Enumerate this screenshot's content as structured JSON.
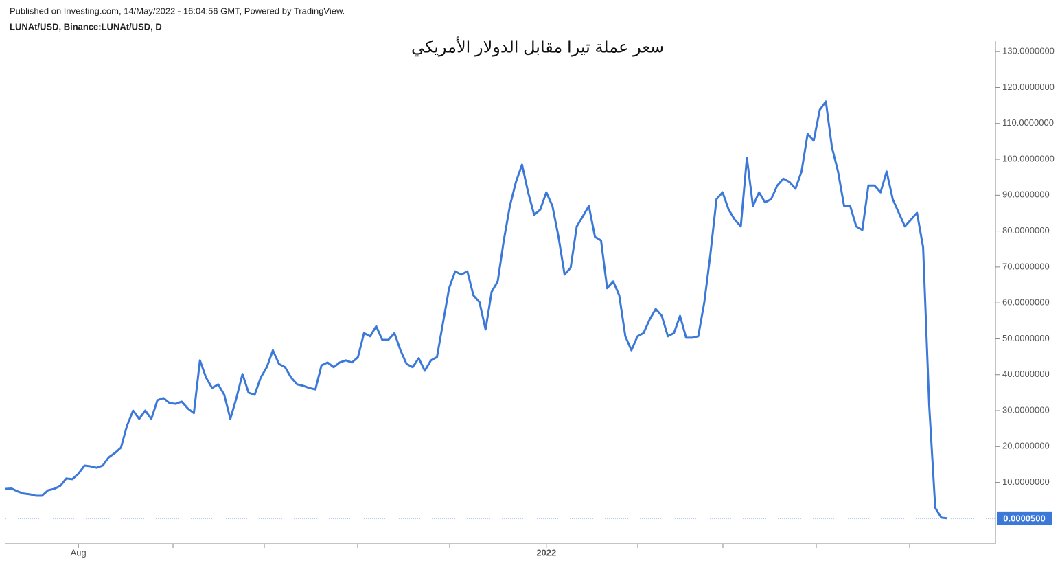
{
  "header": {
    "published": "Published on Investing.com, 14/May/2022 - 16:04:56 GMT, Powered by TradingView.",
    "symbol": "LUNAt/USD, Binance:LUNAt/USD, D"
  },
  "chart_data": {
    "type": "line",
    "title": "سعر عملة تيرا مقابل الدولار الأمريكي",
    "color": "#3b78d8",
    "categories": [
      null,
      null,
      null,
      null,
      null,
      null,
      null,
      null,
      null,
      null,
      null,
      null,
      "Aug",
      null,
      null,
      null,
      null,
      null,
      null,
      null,
      null,
      null,
      null,
      null,
      null,
      null,
      null,
      null,
      null,
      null,
      null,
      null,
      null,
      null,
      null,
      null,
      null,
      null,
      null,
      null,
      null,
      null,
      null,
      null,
      null,
      null,
      null,
      null,
      null,
      null,
      null,
      null,
      null,
      null,
      null,
      null,
      null,
      null,
      null,
      null,
      null,
      null,
      null,
      null,
      null,
      null,
      null,
      null,
      null,
      null,
      null,
      null,
      null,
      null,
      null,
      null,
      null,
      null,
      null,
      null,
      null,
      null,
      null,
      null,
      null,
      null,
      null,
      null,
      null,
      "2022",
      null,
      null,
      null,
      null,
      null,
      null,
      null,
      null,
      null,
      null,
      null,
      null,
      null,
      null,
      null,
      null,
      null,
      null,
      null,
      null,
      null,
      null,
      null,
      null,
      null,
      null,
      null,
      null,
      null,
      null,
      null,
      null,
      null,
      null,
      null,
      null,
      null,
      null,
      null,
      null,
      null,
      null,
      null,
      null,
      null,
      null,
      null,
      null,
      null,
      null,
      null,
      null,
      null,
      null,
      null,
      null,
      null,
      null,
      null,
      null,
      null,
      null,
      null,
      null,
      null,
      null
    ],
    "values": [
      8.2,
      8.3,
      7.5,
      6.9,
      6.7,
      6.3,
      6.3,
      7.8,
      8.2,
      9.0,
      11.1,
      10.9,
      12.4,
      14.7,
      14.5,
      14.1,
      14.7,
      17.0,
      18.2,
      19.7,
      25.8,
      30.0,
      27.7,
      30.0,
      27.7,
      32.9,
      33.5,
      32.1,
      31.9,
      32.5,
      30.6,
      29.3,
      44.0,
      39.2,
      36.3,
      37.3,
      34.4,
      27.7,
      33.5,
      40.2,
      35.0,
      34.4,
      39.2,
      42.1,
      46.8,
      43.0,
      42.1,
      39.2,
      37.3,
      36.9,
      36.3,
      35.9,
      42.6,
      43.4,
      42.1,
      43.4,
      44.0,
      43.4,
      44.9,
      51.6,
      50.7,
      53.5,
      49.7,
      49.7,
      51.6,
      46.8,
      43.0,
      42.1,
      44.6,
      41.1,
      44.0,
      44.9,
      54.5,
      64.1,
      68.8,
      67.9,
      68.8,
      62.1,
      60.2,
      52.6,
      63.1,
      66.0,
      77.4,
      87.0,
      93.7,
      98.5,
      90.8,
      84.5,
      86.0,
      90.8,
      87.0,
      78.4,
      67.9,
      69.8,
      81.3,
      84.1,
      87.0,
      78.4,
      77.4,
      64.1,
      66.0,
      62.1,
      50.7,
      46.8,
      50.7,
      51.6,
      55.4,
      58.3,
      56.4,
      50.7,
      51.6,
      56.4,
      50.3,
      50.3,
      50.7,
      60.2,
      73.6,
      88.9,
      90.8,
      86.0,
      83.2,
      81.3,
      100.4,
      87.0,
      90.8,
      88.0,
      88.9,
      92.7,
      94.6,
      93.7,
      91.8,
      96.6,
      107.1,
      105.2,
      113.8,
      116.1,
      103.3,
      96.6,
      87.0,
      87.0,
      81.3,
      80.3,
      92.7,
      92.7,
      90.8,
      96.6,
      88.9,
      85.1,
      81.3,
      83.2,
      85.1,
      75.5,
      31.5,
      2.9,
      0.2,
      5e-05
    ],
    "last_label": {
      "value": 5e-05,
      "label": "0.0000500"
    },
    "ylim": [
      -7.1,
      132.9
    ],
    "yticks": [
      {
        "value": 10,
        "label": "10.0000000"
      },
      {
        "value": 20,
        "label": "20.0000000"
      },
      {
        "value": 30,
        "label": "30.0000000"
      },
      {
        "value": 40,
        "label": "40.0000000"
      },
      {
        "value": 50,
        "label": "50.0000000"
      },
      {
        "value": 60,
        "label": "60.0000000"
      },
      {
        "value": 70,
        "label": "70.0000000"
      },
      {
        "value": 80,
        "label": "80.0000000"
      },
      {
        "value": 90,
        "label": "90.0000000"
      },
      {
        "value": 100,
        "label": "100.0000000"
      },
      {
        "value": 110,
        "label": "110.0000000"
      },
      {
        "value": 120,
        "label": "120.0000000"
      },
      {
        "value": 130,
        "label": "130.0000000"
      }
    ],
    "grid": false
  }
}
